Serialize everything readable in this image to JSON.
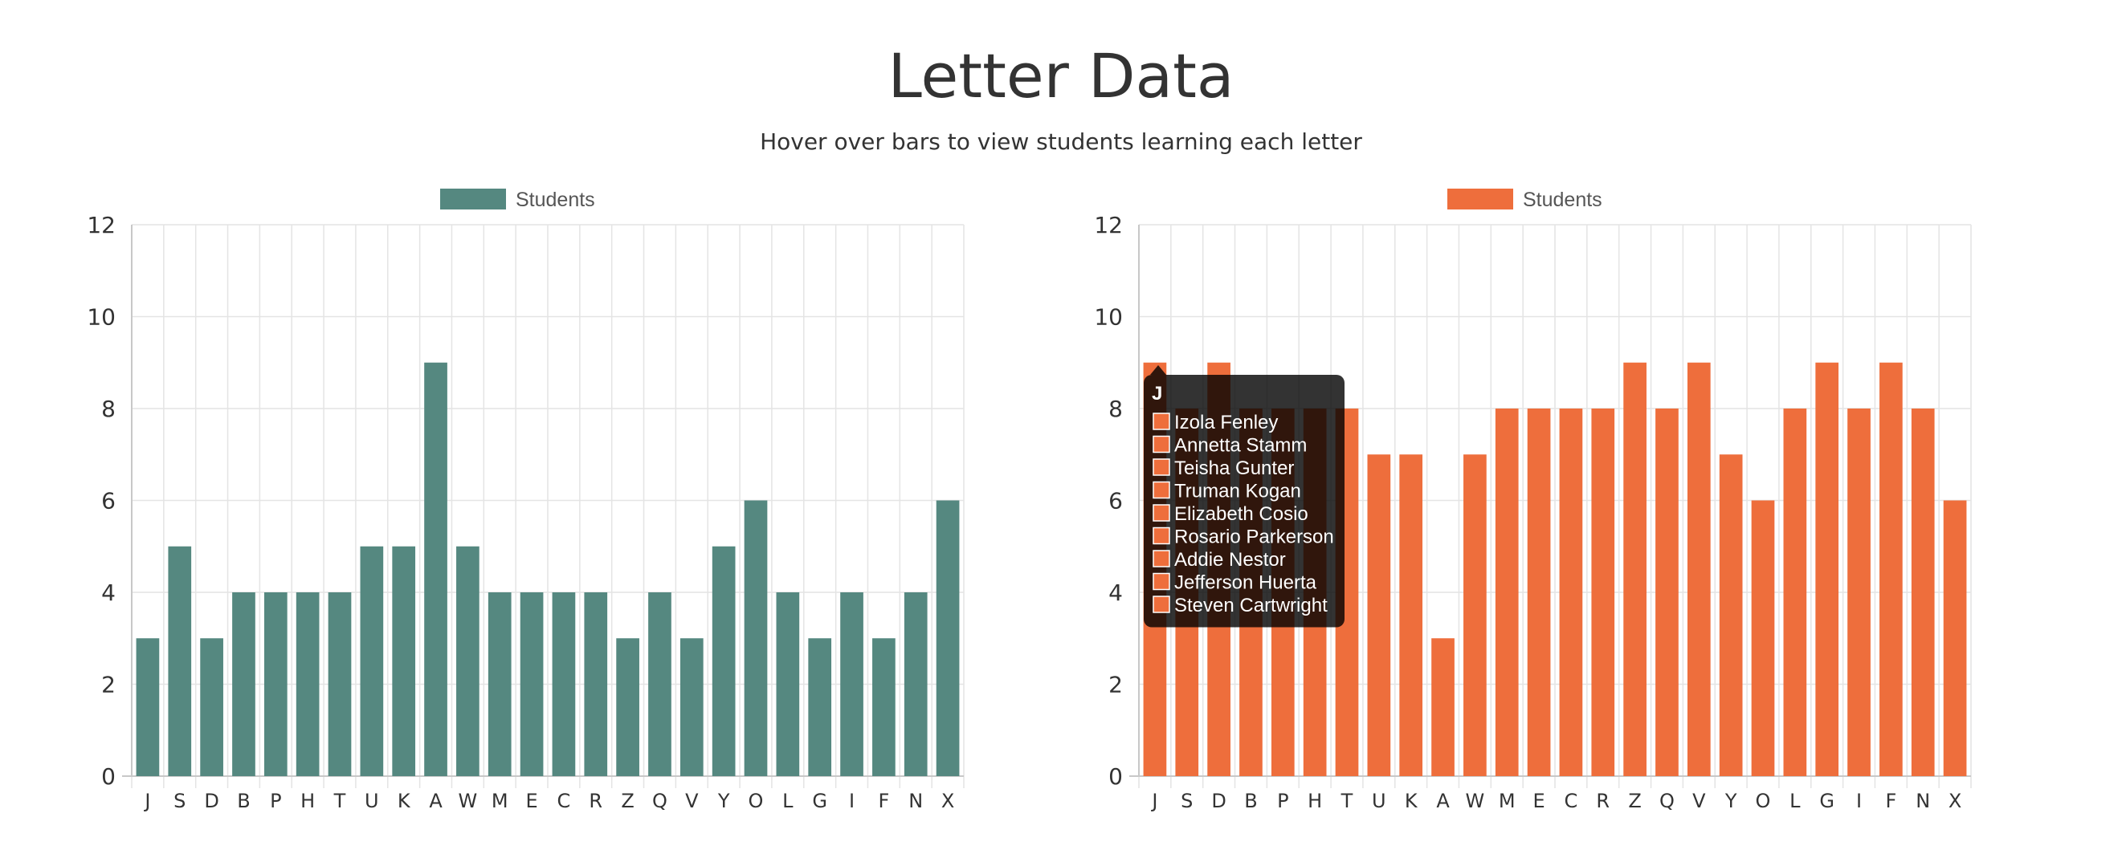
{
  "page": {
    "title": "Letter Data",
    "subtitle": "Hover over bars to view students learning each letter"
  },
  "chart_data": [
    {
      "type": "bar",
      "legend": "Students",
      "color": "#558880",
      "ylim": [
        0,
        12
      ],
      "yticks": [
        0,
        2,
        4,
        6,
        8,
        10,
        12
      ],
      "grid": true,
      "legend_position": "top",
      "categories": [
        "J",
        "S",
        "D",
        "B",
        "P",
        "H",
        "T",
        "U",
        "K",
        "A",
        "W",
        "M",
        "E",
        "C",
        "R",
        "Z",
        "Q",
        "V",
        "Y",
        "O",
        "L",
        "G",
        "I",
        "F",
        "N",
        "X"
      ],
      "values": [
        3,
        5,
        3,
        4,
        4,
        4,
        4,
        5,
        5,
        9,
        5,
        4,
        4,
        4,
        4,
        3,
        4,
        3,
        5,
        6,
        4,
        3,
        4,
        3,
        4,
        6
      ]
    },
    {
      "type": "bar",
      "legend": "Students",
      "color": "#ee6e3c",
      "ylim": [
        0,
        12
      ],
      "yticks": [
        0,
        2,
        4,
        6,
        8,
        10,
        12
      ],
      "grid": true,
      "legend_position": "top",
      "categories": [
        "J",
        "S",
        "D",
        "B",
        "P",
        "H",
        "T",
        "U",
        "K",
        "A",
        "W",
        "M",
        "E",
        "C",
        "R",
        "Z",
        "Q",
        "V",
        "Y",
        "O",
        "L",
        "G",
        "I",
        "F",
        "N",
        "X"
      ],
      "values": [
        9,
        8,
        9,
        8,
        8,
        8,
        8,
        7,
        7,
        3,
        7,
        8,
        8,
        8,
        8,
        9,
        8,
        9,
        7,
        6,
        8,
        9,
        8,
        9,
        8,
        6
      ],
      "tooltip": {
        "title": "J",
        "items": [
          "Izola Fenley",
          "Annetta Stamm",
          "Teisha Gunter",
          "Truman Kogan",
          "Elizabeth Cosio",
          "Rosario Parkerson",
          "Addie Nestor",
          "Jefferson Huerta",
          "Steven Cartwright"
        ]
      }
    }
  ]
}
